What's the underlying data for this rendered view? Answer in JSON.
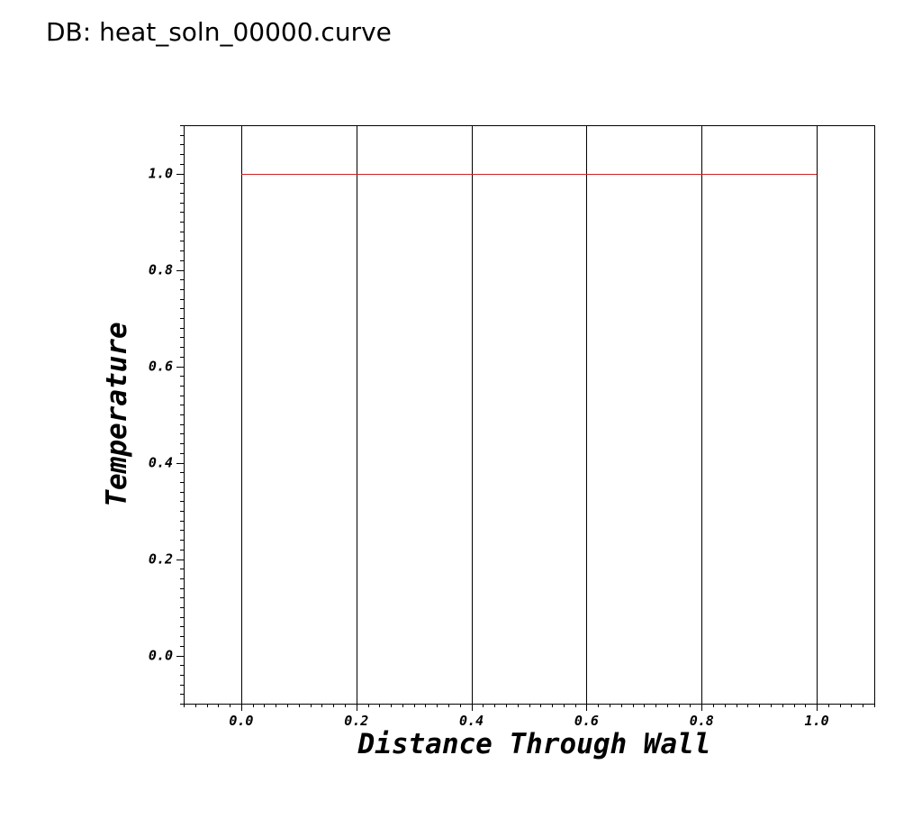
{
  "database_label": "DB: heat_soln_00000.curve",
  "chart_data": {
    "type": "line",
    "xlabel": "Distance Through Wall",
    "ylabel": "Temperature",
    "xlim": [
      -0.1,
      1.1
    ],
    "ylim": [
      -0.1,
      1.1
    ],
    "grid": "vertical",
    "x_ticks": [
      0.0,
      0.2,
      0.4,
      0.6,
      0.8,
      1.0
    ],
    "x_tick_labels": [
      "0.0",
      "0.2",
      "0.4",
      "0.6",
      "0.8",
      "1.0"
    ],
    "y_ticks": [
      0.0,
      0.2,
      0.4,
      0.6,
      0.8,
      1.0
    ],
    "y_tick_labels": [
      "0.0",
      "0.2",
      "0.4",
      "0.6",
      "0.8",
      "1.0"
    ],
    "series": [
      {
        "color": "#cc2222",
        "x": [
          0.0,
          0.2,
          0.4,
          0.6,
          0.8,
          1.0
        ],
        "y": [
          1.0,
          1.0,
          1.0,
          1.0,
          1.0,
          1.0
        ]
      }
    ]
  }
}
